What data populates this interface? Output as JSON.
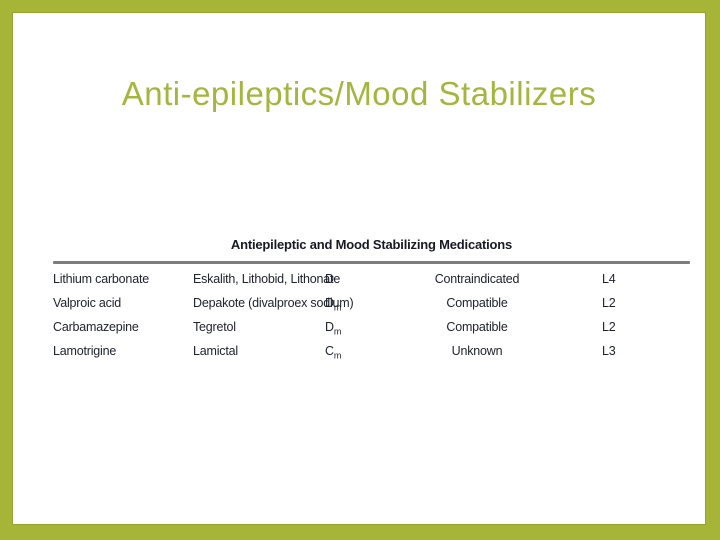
{
  "slide": {
    "title": "Anti-epileptics/Mood Stabilizers"
  },
  "table": {
    "heading": "Antiepileptic and Mood Stabilizing Medications",
    "rows": [
      {
        "generic": "Lithium carbonate",
        "brand": "Eskalith, Lithobid, Lithonate",
        "pregnancy_category": "D",
        "pregnancy_category_sub": "",
        "breastfeeding": "Contraindicated",
        "lactation_risk": "L4"
      },
      {
        "generic": "Valproic acid",
        "brand": "Depakote (divalproex sodium)",
        "pregnancy_category": "D",
        "pregnancy_category_sub": "m",
        "breastfeeding": "Compatible",
        "lactation_risk": "L2"
      },
      {
        "generic": "Carbamazepine",
        "brand": "Tegretol",
        "pregnancy_category": "D",
        "pregnancy_category_sub": "m",
        "breastfeeding": "Compatible",
        "lactation_risk": "L2"
      },
      {
        "generic": "Lamotrigine",
        "brand": "Lamictal",
        "pregnancy_category": "C",
        "pregnancy_category_sub": "m",
        "breastfeeding": "Unknown",
        "lactation_risk": "L3"
      }
    ]
  },
  "colors": {
    "frame_green": "#a6b437",
    "title_green": "#a4b63e",
    "table_text": "#20242e",
    "rule_gray": "#7d7d7d"
  }
}
